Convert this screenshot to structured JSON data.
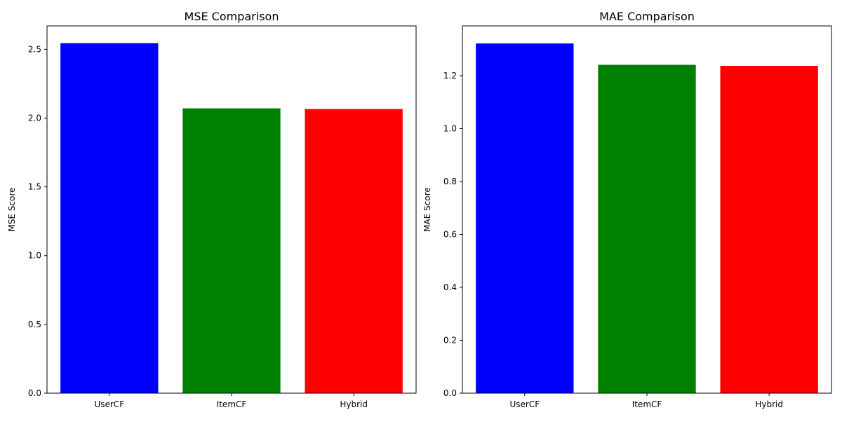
{
  "chart_data": [
    {
      "type": "bar",
      "title": "MSE Comparison",
      "xlabel": "",
      "ylabel": "MSE Score",
      "categories": [
        "UserCF",
        "ItemCF",
        "Hybrid"
      ],
      "values": [
        2.545,
        2.071,
        2.066
      ],
      "colors": [
        "#0000ff",
        "#008000",
        "#ff0000"
      ],
      "ylim": [
        0,
        2.67
      ],
      "yticks": [
        "0.0",
        "0.5",
        "1.0",
        "1.5",
        "2.0",
        "2.5"
      ],
      "grid": false
    },
    {
      "type": "bar",
      "title": "MAE Comparison",
      "xlabel": "",
      "ylabel": "MAE Score",
      "categories": [
        "UserCF",
        "ItemCF",
        "Hybrid"
      ],
      "values": [
        1.322,
        1.241,
        1.237
      ],
      "colors": [
        "#0000ff",
        "#008000",
        "#ff0000"
      ],
      "ylim": [
        0,
        1.388
      ],
      "yticks": [
        "0.0",
        "0.2",
        "0.4",
        "0.6",
        "0.8",
        "1.0",
        "1.2"
      ],
      "grid": false
    }
  ]
}
